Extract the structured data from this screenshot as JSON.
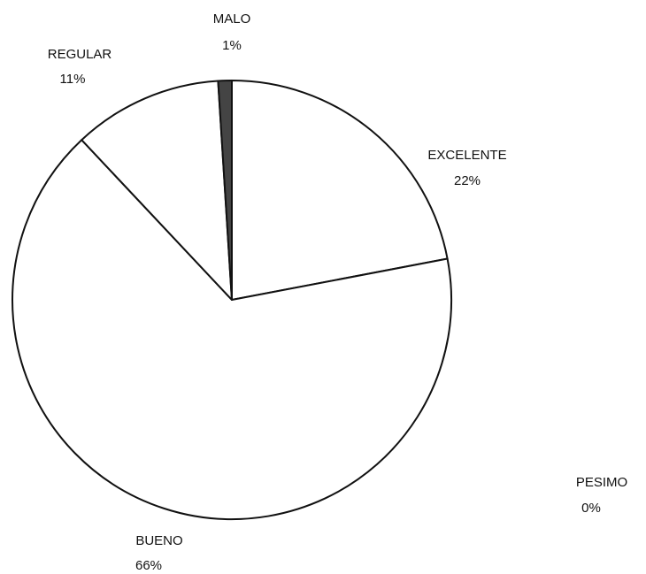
{
  "chart_data": {
    "type": "pie",
    "categories": [
      "EXCELENTE",
      "BUENO",
      "REGULAR",
      "MALO",
      "PESIMO"
    ],
    "values": [
      22,
      66,
      11,
      1,
      0
    ],
    "value_labels": [
      "22%",
      "66%",
      "11%",
      "1%",
      "0%"
    ],
    "colors": [
      "#ffffff",
      "#ffffff",
      "#ffffff",
      "#444444",
      "#ffffff"
    ],
    "start_angle": 0,
    "direction": "clockwise"
  }
}
